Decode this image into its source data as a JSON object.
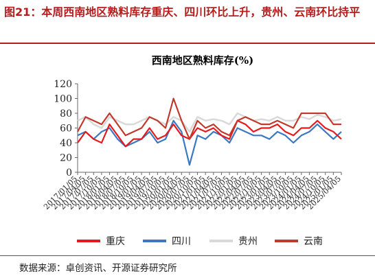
{
  "figure": {
    "title": "图21：本周西南地区熟料库存重庆、四川环比上升，贵州、云南环比持平",
    "source": "数据来源：卓创资讯、开源证券研究所"
  },
  "colors": {
    "title_red": "#b71c1c",
    "chongqing": "#e41a1c",
    "sichuan": "#3a78c2",
    "guizhou": "#d9d9d9",
    "yunnan": "#c0392b"
  },
  "chart_data": {
    "type": "line",
    "title": "西南地区熟料库存(%)",
    "ylim": [
      0,
      120
    ],
    "yticks": [
      0,
      20,
      40,
      60,
      80,
      100,
      120
    ],
    "grid": false,
    "legend_position": "bottom",
    "x": [
      "2017/01/05",
      "2017/04/05",
      "2017/07/05",
      "2017/10/05",
      "2018/01/05",
      "2018/04/05",
      "2018/07/05",
      "2018/10/05",
      "2019/01/05",
      "2019/04/05",
      "2019/07/05",
      "2019/10/05",
      "2020/01/05",
      "2020/04/05",
      "2020/07/05",
      "2020/10/05",
      "2021/01/05",
      "2021/04/05",
      "2021/07/05",
      "2021/10/05",
      "2022/01/05",
      "2022/04/05",
      "2022/07/05",
      "2022/10/05",
      "2023/01/05",
      "2023/04/05",
      "2023/07/05",
      "2023/10/05",
      "2024/01/05",
      "2024/04/05",
      "2024/07/05",
      "2024/10/05",
      "2025/01/05",
      "2025/04/05"
    ],
    "series": [
      {
        "name": "重庆",
        "values": [
          40,
          55,
          45,
          40,
          65,
          50,
          35,
          45,
          45,
          60,
          45,
          50,
          65,
          50,
          45,
          60,
          55,
          60,
          50,
          45,
          70,
          65,
          55,
          60,
          60,
          65,
          55,
          50,
          60,
          60,
          70,
          60,
          55,
          45
        ]
      },
      {
        "name": "四川",
        "values": [
          50,
          55,
          45,
          55,
          60,
          45,
          35,
          40,
          45,
          55,
          40,
          45,
          70,
          55,
          10,
          50,
          45,
          55,
          50,
          40,
          60,
          55,
          50,
          50,
          45,
          55,
          50,
          40,
          50,
          55,
          65,
          55,
          45,
          55
        ]
      },
      {
        "name": "贵州",
        "values": [
          70,
          75,
          65,
          60,
          75,
          70,
          65,
          65,
          70,
          75,
          70,
          65,
          75,
          70,
          55,
          75,
          70,
          72,
          70,
          65,
          80,
          75,
          70,
          72,
          70,
          75,
          70,
          70,
          75,
          72,
          78,
          75,
          70,
          72
        ]
      },
      {
        "name": "云南",
        "values": [
          55,
          75,
          70,
          65,
          80,
          65,
          50,
          55,
          60,
          75,
          70,
          60,
          100,
          70,
          45,
          70,
          60,
          65,
          55,
          50,
          70,
          75,
          70,
          65,
          65,
          70,
          65,
          60,
          80,
          80,
          80,
          80,
          65,
          65
        ]
      }
    ]
  }
}
